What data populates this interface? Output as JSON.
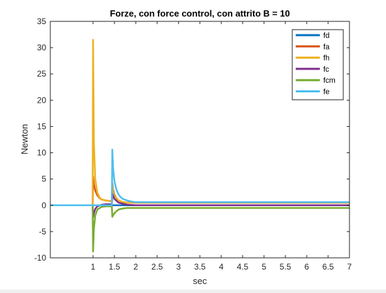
{
  "chart_data": {
    "type": "line",
    "title": "Forze, con force control, con attrito B = 10",
    "xlabel": "sec",
    "ylabel": "Newton",
    "xlim": [
      0,
      7
    ],
    "ylim": [
      -10,
      35
    ],
    "xticks": [
      1,
      1.5,
      2,
      2.5,
      3,
      3.5,
      4,
      4.5,
      5,
      5.5,
      6,
      6.5,
      7
    ],
    "xtick_labels": [
      "1",
      "1.5",
      "2",
      "2.5",
      "3",
      "3.5",
      "4",
      "4.5",
      "5",
      "5.5",
      "6",
      "6.5",
      "7"
    ],
    "yticks": [
      -10,
      -5,
      0,
      5,
      10,
      15,
      20,
      25,
      30,
      35
    ],
    "ytick_labels": [
      "-10",
      "-5",
      "0",
      "5",
      "10",
      "15",
      "20",
      "25",
      "30",
      "35"
    ],
    "grid": false,
    "legend_position": "top-right",
    "series": [
      {
        "name": "fd",
        "color": "#0072BD",
        "x": [
          0,
          1,
          1.02,
          1.5,
          7
        ],
        "y": [
          0,
          0,
          0,
          0,
          0
        ]
      },
      {
        "name": "fa",
        "color": "#D95319",
        "x": [
          0,
          0.99,
          1.0,
          1.02,
          1.05,
          1.1,
          1.15,
          1.2,
          1.3,
          1.44,
          1.45,
          1.47,
          1.5,
          1.55,
          1.6,
          1.7,
          1.8,
          2.0,
          7
        ],
        "y": [
          0,
          0,
          5.5,
          4.0,
          2.8,
          1.9,
          1.4,
          1.1,
          0.9,
          0.8,
          4.2,
          3.0,
          2.0,
          1.3,
          0.9,
          0.6,
          0.5,
          0.5,
          0.5
        ]
      },
      {
        "name": "fh",
        "color": "#EDB120",
        "x": [
          0,
          0.99,
          1.0,
          1.02,
          1.05,
          1.1,
          1.15,
          1.2,
          1.3,
          1.44,
          1.45,
          1.47,
          1.5,
          1.55,
          1.6,
          1.7,
          1.8,
          2.0,
          7
        ],
        "y": [
          0,
          0,
          31.5,
          12,
          5,
          2.4,
          1.5,
          1.1,
          0.9,
          0.8,
          3.8,
          2.6,
          1.8,
          1.2,
          0.9,
          0.6,
          0.5,
          0.5,
          0.5
        ]
      },
      {
        "name": "fc",
        "color": "#7E2F8E",
        "x": [
          0,
          0.99,
          1.0,
          1.02,
          1.05,
          1.1,
          1.2,
          1.3,
          1.44,
          1.45,
          1.5,
          1.6,
          1.8,
          2.0,
          7
        ],
        "y": [
          0,
          0,
          -2.3,
          -1.5,
          -0.7,
          -0.2,
          0.1,
          0.2,
          0.2,
          2.2,
          1.2,
          0.5,
          0.1,
          0,
          0
        ]
      },
      {
        "name": "fcm",
        "color": "#77AC30",
        "x": [
          0,
          0.99,
          1.0,
          1.02,
          1.05,
          1.1,
          1.2,
          1.3,
          1.44,
          1.45,
          1.47,
          1.5,
          1.55,
          1.6,
          1.7,
          1.8,
          2.0,
          7
        ],
        "y": [
          0,
          0,
          -8.8,
          -4.5,
          -2.0,
          -0.8,
          -0.3,
          -0.2,
          -0.2,
          -2.2,
          -1.9,
          -1.5,
          -1.1,
          -0.8,
          -0.6,
          -0.5,
          -0.5,
          -0.5
        ]
      },
      {
        "name": "fe",
        "color": "#4DBEEE",
        "x": [
          0,
          1.0,
          1.1,
          1.3,
          1.44,
          1.45,
          1.47,
          1.5,
          1.55,
          1.6,
          1.65,
          1.7,
          1.8,
          1.9,
          2.0,
          7
        ],
        "y": [
          0,
          0,
          0,
          0,
          0,
          10.6,
          7.0,
          4.6,
          2.9,
          2.0,
          1.5,
          1.2,
          0.9,
          0.7,
          0.6,
          0.6
        ]
      }
    ]
  }
}
